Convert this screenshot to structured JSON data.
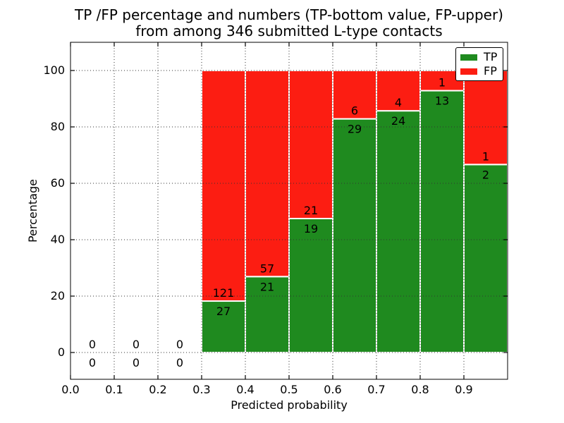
{
  "chart_data": {
    "type": "bar",
    "stacked": true,
    "normalized_to_percent": true,
    "title": "TP /FP percentage and numbers (TP-bottom value, FP-upper)",
    "subtitle": "from among 346 submitted L-type contacts",
    "xlabel": "Predicted probability",
    "ylabel": "Percentage",
    "xlim": [
      0.0,
      1.0
    ],
    "ylim": [
      -9.5,
      110
    ],
    "grid": true,
    "xticks": [
      "0.0",
      "0.1",
      "0.2",
      "0.3",
      "0.4",
      "0.5",
      "0.6",
      "0.7",
      "0.8",
      "0.9"
    ],
    "yticks": [
      "0",
      "20",
      "40",
      "60",
      "80",
      "100"
    ],
    "legend_position": "upper right",
    "legend": [
      {
        "label": "TP",
        "color": "#1f8a1f"
      },
      {
        "label": "FP",
        "color": "#fc1d12"
      }
    ],
    "colors": {
      "tp": "#1f8a1f",
      "fp": "#fc1d12",
      "bar_edge": "#ffffff",
      "grid": "#333333",
      "axis": "#000000"
    },
    "bins": [
      {
        "x0": 0.0,
        "x1": 0.1,
        "tp": 0,
        "fp": 0
      },
      {
        "x0": 0.1,
        "x1": 0.2,
        "tp": 0,
        "fp": 0
      },
      {
        "x0": 0.2,
        "x1": 0.3,
        "tp": 0,
        "fp": 0
      },
      {
        "x0": 0.3,
        "x1": 0.4,
        "tp": 27,
        "fp": 121
      },
      {
        "x0": 0.4,
        "x1": 0.5,
        "tp": 21,
        "fp": 57
      },
      {
        "x0": 0.5,
        "x1": 0.6,
        "tp": 19,
        "fp": 21
      },
      {
        "x0": 0.6,
        "x1": 0.7,
        "tp": 29,
        "fp": 6
      },
      {
        "x0": 0.7,
        "x1": 0.8,
        "tp": 24,
        "fp": 4
      },
      {
        "x0": 0.8,
        "x1": 0.9,
        "tp": 13,
        "fp": 1
      },
      {
        "x0": 0.9,
        "x1": 1.0,
        "tp": 2,
        "fp": 1
      }
    ],
    "total_contacts": 346
  }
}
